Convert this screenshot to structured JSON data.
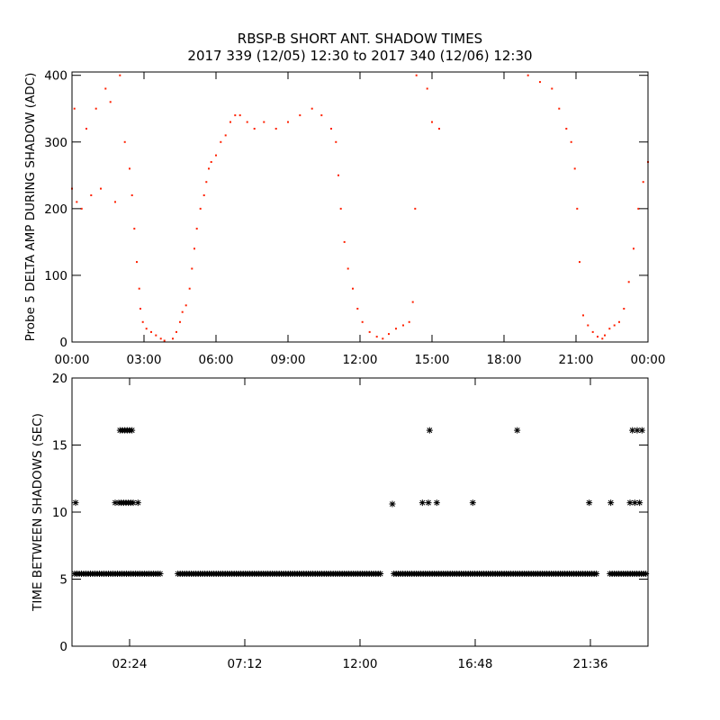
{
  "title_line1": "RBSP-B SHORT ANT. SHADOW TIMES",
  "title_line2": "2017 339 (12/05) 12:30 to 2017 340 (12/06) 12:30",
  "colors": {
    "amplitude": "#ff2000",
    "interval": "#000000",
    "axes": "#000000"
  },
  "chart_data": [
    {
      "type": "scatter",
      "ylabel": "Probe 5 DELTA AMP DURING SHADOW (ADC)",
      "xlim": [
        0,
        24
      ],
      "ylim": [
        0,
        405
      ],
      "x_ticks": [
        {
          "value": 0,
          "label": "00:00"
        },
        {
          "value": 3,
          "label": "03:00"
        },
        {
          "value": 6,
          "label": "06:00"
        },
        {
          "value": 9,
          "label": "09:00"
        },
        {
          "value": 12,
          "label": "12:00"
        },
        {
          "value": 15,
          "label": "15:00"
        },
        {
          "value": 18,
          "label": "18:00"
        },
        {
          "value": 21,
          "label": "21:00"
        },
        {
          "value": 24,
          "label": "00:00"
        }
      ],
      "y_ticks": [
        {
          "value": 0,
          "label": "0"
        },
        {
          "value": 100,
          "label": "100"
        },
        {
          "value": 200,
          "label": "200"
        },
        {
          "value": 300,
          "label": "300"
        },
        {
          "value": 400,
          "label": "400"
        }
      ],
      "series": [
        {
          "x": [
            0.0,
            0.1,
            0.2,
            0.4,
            0.6,
            0.8,
            1.0,
            1.2,
            1.4,
            1.6,
            1.8,
            2.0,
            2.2,
            2.4,
            2.5,
            2.6,
            2.7,
            2.8,
            2.85,
            2.95,
            3.1,
            3.3,
            3.5,
            3.7,
            3.85,
            4.2,
            4.35,
            4.5,
            4.6,
            4.75,
            4.9,
            5.0,
            5.1,
            5.2,
            5.35,
            5.5,
            5.6,
            5.7,
            5.8,
            6.0,
            6.2,
            6.4,
            6.6,
            6.8,
            7.0,
            7.3,
            7.6,
            8.0,
            8.5,
            9.0,
            9.5,
            10.0,
            10.4,
            10.8,
            11.0,
            11.1,
            11.2,
            11.35,
            11.5,
            11.7,
            11.9,
            12.1,
            12.4,
            12.7,
            12.95,
            13.2,
            13.5,
            13.8,
            14.05,
            14.2,
            14.3,
            14.35,
            14.8,
            15.0,
            15.3,
            19.0,
            19.5,
            20.0,
            20.3,
            20.6,
            20.8,
            20.95,
            21.05,
            21.15,
            21.3,
            21.5,
            21.7,
            21.9,
            22.1,
            22.2,
            22.4,
            22.6,
            22.8,
            23.0,
            23.2,
            23.4,
            23.6,
            23.8,
            24.0
          ],
          "y": [
            230,
            350,
            210,
            200,
            320,
            220,
            350,
            230,
            380,
            360,
            210,
            400,
            300,
            260,
            220,
            170,
            120,
            80,
            50,
            30,
            20,
            15,
            10,
            5,
            2,
            5,
            15,
            30,
            45,
            55,
            80,
            110,
            140,
            170,
            200,
            220,
            240,
            260,
            270,
            280,
            300,
            310,
            330,
            340,
            340,
            330,
            320,
            330,
            320,
            330,
            340,
            350,
            340,
            320,
            300,
            250,
            200,
            150,
            110,
            80,
            50,
            30,
            15,
            8,
            5,
            12,
            20,
            25,
            30,
            60,
            200,
            400,
            380,
            330,
            320,
            400,
            390,
            380,
            350,
            320,
            300,
            260,
            200,
            120,
            40,
            25,
            15,
            8,
            5,
            10,
            20,
            25,
            30,
            50,
            90,
            140,
            200,
            240,
            270
          ]
        }
      ]
    },
    {
      "type": "scatter",
      "ylabel": "TIME BETWEEN SHADOWS (SEC)",
      "xlim": [
        0,
        24
      ],
      "ylim": [
        0,
        20
      ],
      "x_ticks": [
        {
          "value": 2.4,
          "label": "02:24"
        },
        {
          "value": 7.2,
          "label": "07:12"
        },
        {
          "value": 12.0,
          "label": "12:00"
        },
        {
          "value": 16.8,
          "label": "16:48"
        },
        {
          "value": 21.6,
          "label": "21:36"
        }
      ],
      "y_ticks": [
        {
          "value": 0,
          "label": "0"
        },
        {
          "value": 5,
          "label": "5"
        },
        {
          "value": 10,
          "label": "10"
        },
        {
          "value": 15,
          "label": "15"
        },
        {
          "value": 20,
          "label": "20"
        }
      ],
      "series": [
        {
          "baseline_value": 5.4,
          "baseline_ranges": [
            [
              0.0,
              3.8
            ],
            [
              4.3,
              13.0
            ],
            [
              13.3,
              22.0
            ],
            [
              22.3,
              24.0
            ]
          ],
          "x": [
            0.15,
            1.8,
            1.95,
            2.05,
            2.15,
            2.25,
            2.35,
            2.45,
            2.55,
            2.75,
            2.0,
            2.1,
            2.2,
            2.3,
            2.4,
            2.5,
            13.35,
            14.6,
            14.85,
            15.2,
            16.7,
            18.55,
            21.55,
            22.45,
            23.25,
            23.45,
            23.65,
            23.35,
            23.55,
            23.75,
            14.9
          ],
          "y": [
            10.7,
            10.7,
            10.7,
            10.7,
            10.7,
            10.7,
            10.7,
            10.7,
            10.7,
            10.7,
            16.1,
            16.1,
            16.1,
            16.1,
            16.1,
            16.1,
            10.6,
            10.7,
            10.7,
            10.7,
            10.7,
            16.1,
            10.7,
            10.7,
            10.7,
            10.7,
            10.7,
            16.1,
            16.1,
            16.1,
            16.1
          ]
        }
      ]
    }
  ]
}
